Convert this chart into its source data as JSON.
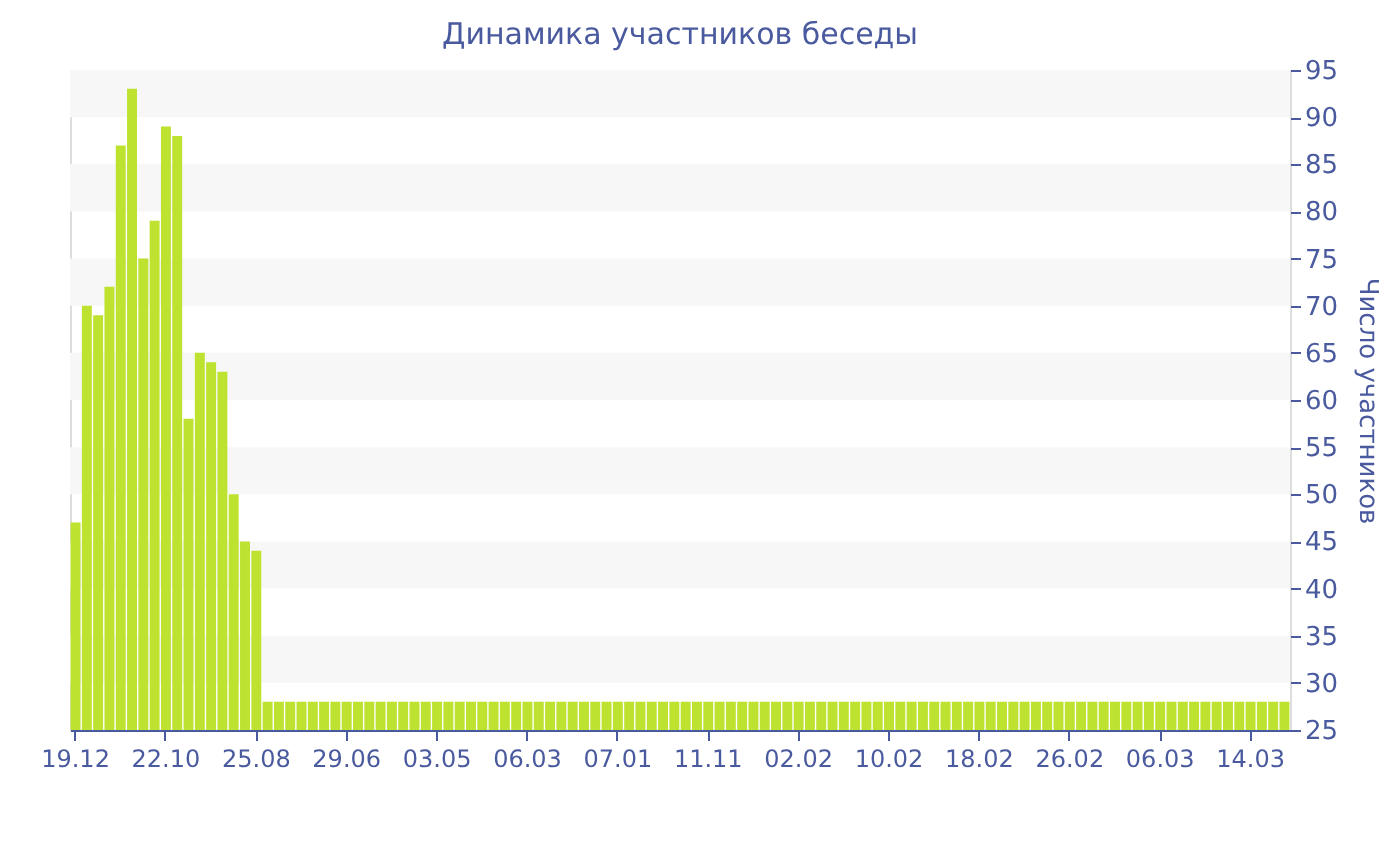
{
  "chart_data": {
    "type": "bar",
    "title": "Динамика участников беседы",
    "ylabel": "Число участников",
    "categories": [
      "19.12",
      null,
      null,
      null,
      null,
      null,
      null,
      null,
      "22.10",
      null,
      null,
      null,
      null,
      null,
      null,
      null,
      "25.08",
      null,
      null,
      null,
      null,
      null,
      null,
      null,
      "29.06",
      null,
      null,
      null,
      null,
      null,
      null,
      null,
      "03.05",
      null,
      null,
      null,
      null,
      null,
      null,
      null,
      "06.03",
      null,
      null,
      null,
      null,
      null,
      null,
      null,
      "07.01",
      null,
      null,
      null,
      null,
      null,
      null,
      null,
      "11.11",
      null,
      null,
      null,
      null,
      null,
      null,
      null,
      "02.02",
      null,
      null,
      null,
      null,
      null,
      null,
      null,
      "10.02",
      null,
      null,
      null,
      null,
      null,
      null,
      null,
      "18.02",
      null,
      null,
      null,
      null,
      null,
      null,
      null,
      "26.02",
      null,
      null,
      null,
      null,
      null,
      null,
      null,
      "06.03",
      null,
      null,
      null,
      null,
      null,
      null,
      null,
      "14.03",
      null,
      null,
      null
    ],
    "values": [
      47,
      70,
      69,
      72,
      87,
      93,
      75,
      79,
      89,
      88,
      58,
      65,
      64,
      63,
      50,
      45,
      44,
      28,
      28,
      28,
      28,
      28,
      28,
      28,
      28,
      28,
      28,
      28,
      28,
      28,
      28,
      28,
      28,
      28,
      28,
      28,
      28,
      28,
      28,
      28,
      28,
      28,
      28,
      28,
      28,
      28,
      28,
      28,
      28,
      28,
      28,
      28,
      28,
      28,
      28,
      28,
      28,
      28,
      28,
      28,
      28,
      28,
      28,
      28,
      28,
      28,
      28,
      28,
      28,
      28,
      28,
      28,
      28,
      28,
      28,
      28,
      28,
      28,
      28,
      28,
      28,
      28,
      28,
      28,
      28,
      28,
      28,
      28,
      28,
      28,
      28,
      28,
      28,
      28,
      28,
      28,
      28,
      28,
      28,
      28,
      28,
      28,
      28,
      28,
      28,
      28,
      28,
      28
    ],
    "color": "#bde22f",
    "ylim": [
      25,
      95
    ],
    "yticks": [
      25,
      30,
      35,
      40,
      45,
      50,
      55,
      60,
      65,
      70,
      75,
      80,
      85,
      90,
      95
    ],
    "bands": [
      {
        "axis": "y",
        "from": 90,
        "to": 95,
        "color": "#f7f7f7"
      },
      {
        "axis": "y",
        "from": 80,
        "to": 85,
        "color": "#f7f7f7"
      },
      {
        "axis": "y",
        "from": 70,
        "to": 75,
        "color": "#f7f7f7"
      },
      {
        "axis": "y",
        "from": 60,
        "to": 65,
        "color": "#f7f7f7"
      },
      {
        "axis": "y",
        "from": 50,
        "to": 55,
        "color": "#f7f7f7"
      },
      {
        "axis": "y",
        "from": 40,
        "to": 45,
        "color": "#f7f7f7"
      },
      {
        "axis": "y",
        "from": 30,
        "to": 35,
        "color": "#f7f7f7"
      }
    ]
  }
}
